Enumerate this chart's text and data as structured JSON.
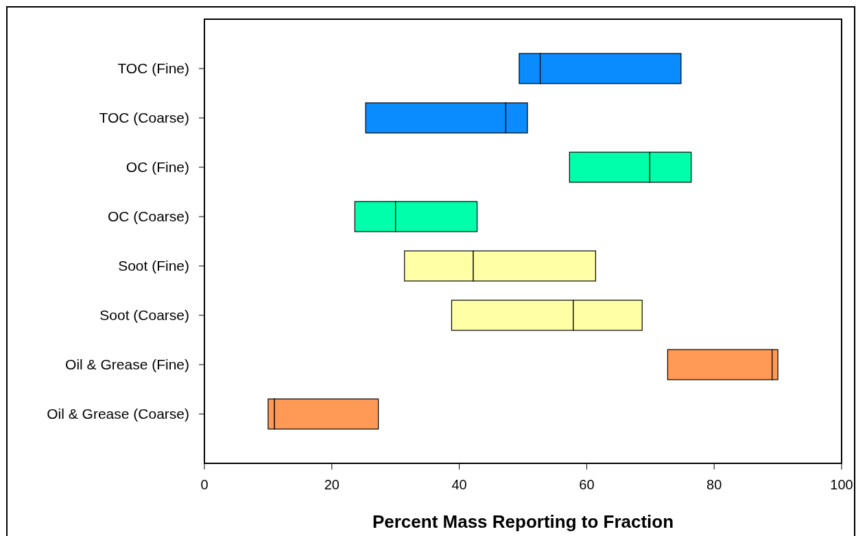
{
  "chart_data": {
    "type": "bar",
    "orientation": "horizontal",
    "xlabel": "Percent Mass Reporting to Fraction",
    "categories": [
      "TOC (Fine)",
      "TOC (Coarse)",
      "OC (Fine)",
      "OC (Coarse)",
      "Soot (Fine)",
      "Soot (Coarse)",
      "Oil & Grease (Fine)",
      "Oil & Grease (Coarse)"
    ],
    "series": [
      {
        "base": [
          49.4,
          25.3,
          57.3,
          23.6,
          31.4,
          38.8,
          72.7,
          10.0
        ],
        "values": [
          3.3,
          22.0,
          12.6,
          6.4,
          10.8,
          19.1,
          16.4,
          1.0
        ],
        "colors": [
          "#0a8cff",
          "#0a8cff",
          "#00ffaa",
          "#00ffaa",
          "#ffffa6",
          "#ffffa6",
          "#ff9955",
          "#ff9955"
        ]
      },
      {
        "base": [
          52.7,
          47.3,
          69.9,
          30.0,
          42.2,
          57.9,
          89.1,
          11.0
        ],
        "values": [
          22.1,
          3.4,
          6.5,
          12.8,
          19.2,
          10.8,
          0.9,
          16.3
        ],
        "colors": [
          "#0a8cff",
          "#0a8cff",
          "#00ffaa",
          "#00ffaa",
          "#ffffa6",
          "#ffffa6",
          "#ff9955",
          "#ff9955"
        ]
      }
    ],
    "xlim": [
      0,
      100
    ],
    "xticks": [
      0,
      20,
      40,
      60,
      80,
      100
    ]
  }
}
